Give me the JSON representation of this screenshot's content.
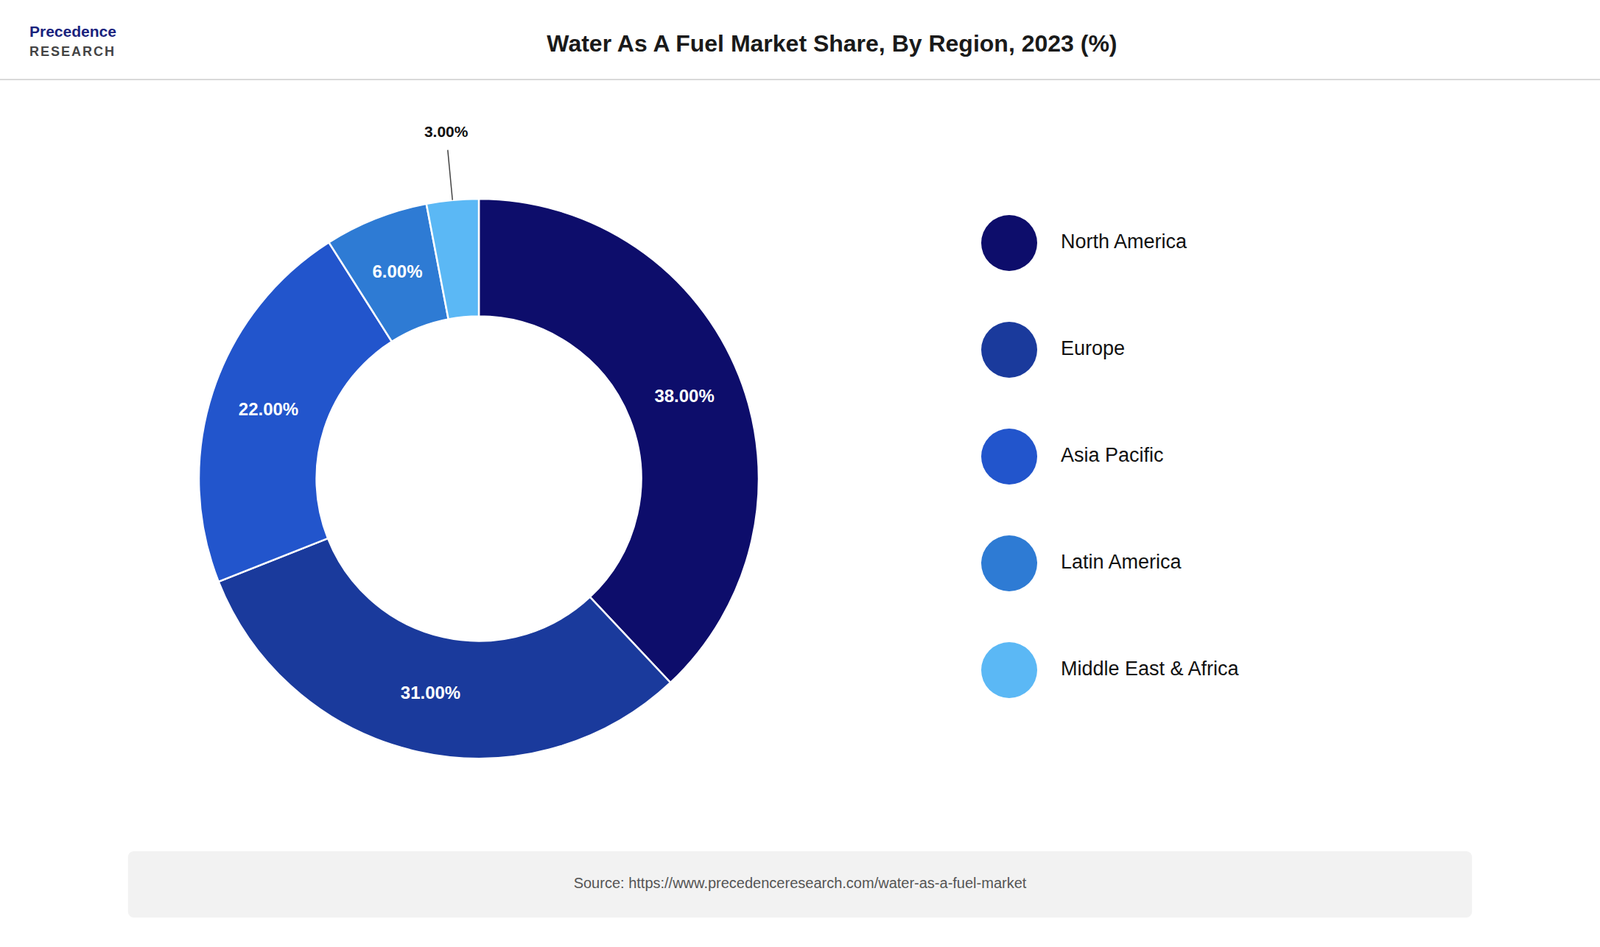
{
  "chart_data": {
    "type": "donut",
    "title": "Water As A Fuel Market Share, By Region, 2023 (%)",
    "categories": [
      "North America",
      "Europe",
      "Asia Pacific",
      "Latin America",
      "Middle East & Africa"
    ],
    "values": [
      38.0,
      31.0,
      22.0,
      6.0,
      3.0
    ],
    "value_labels": [
      "38.00%",
      "31.00%",
      "22.00%",
      "6.00%",
      "3.00%"
    ],
    "colors": [
      "#0d0d6b",
      "#1a3a9c",
      "#2255cc",
      "#2e7bd4",
      "#5bb8f5"
    ],
    "data_labels": true,
    "legend": "right",
    "annotations": [
      "Precedence",
      "RESEARCH",
      "Source: https://www.precedenceresearch.com/water-as-a-fuel-market"
    ]
  }
}
